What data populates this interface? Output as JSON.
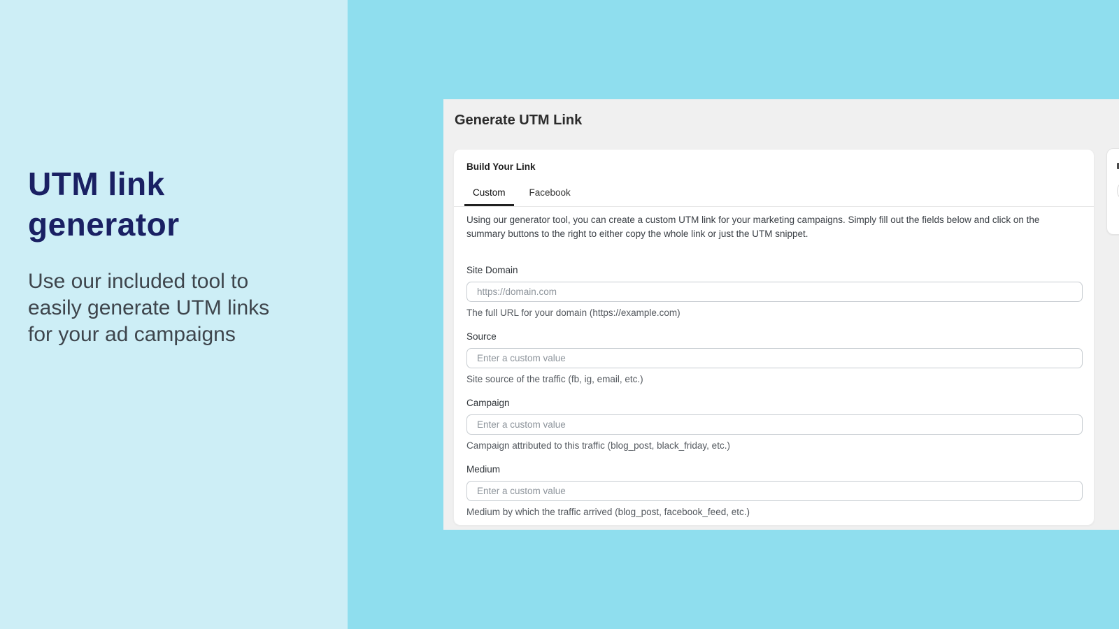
{
  "left_panel": {
    "title_line1": "UTM link",
    "title_line2": "generator",
    "subtitle_line1": "Use our included tool to",
    "subtitle_line2": "easily generate UTM links",
    "subtitle_line3": "for your ad campaigns"
  },
  "generator": {
    "window_title": "Generate UTM Link",
    "card_title": "Build Your Link",
    "tabs": [
      {
        "label": "Custom",
        "active": true
      },
      {
        "label": "Facebook",
        "active": false
      }
    ],
    "description_line1": "Using our generator tool, you can create a custom UTM link for your marketing campaigns. Simply fill out the fields below and click on the",
    "description_line2": "summary buttons to the right to either copy the whole link or just the UTM snippet.",
    "fields": [
      {
        "label": "Site Domain",
        "placeholder": "https://domain.com",
        "value": "",
        "helper": "The full URL for your domain (https://example.com)"
      },
      {
        "label": "Source",
        "placeholder": "Enter a custom value",
        "value": "",
        "helper": "Site source of the traffic (fb, ig, email, etc.)"
      },
      {
        "label": "Campaign",
        "placeholder": "Enter a custom value",
        "value": "",
        "helper": "Campaign attributed to this traffic (blog_post, black_friday, etc.)"
      },
      {
        "label": "Medium",
        "placeholder": "Enter a custom value",
        "value": "",
        "helper": "Medium by which the traffic arrived (blog_post, facebook_feed, etc.)"
      }
    ]
  },
  "colors": {
    "left_panel_bg": "#cdeef6",
    "right_bg": "#8fdeee",
    "window_bg": "#f0f0f0",
    "card_bg": "#ffffff",
    "hero_title": "#1a2063",
    "hero_subtitle": "#3e454c",
    "tab_underline": "#202020",
    "input_border": "#c7ccd1"
  }
}
